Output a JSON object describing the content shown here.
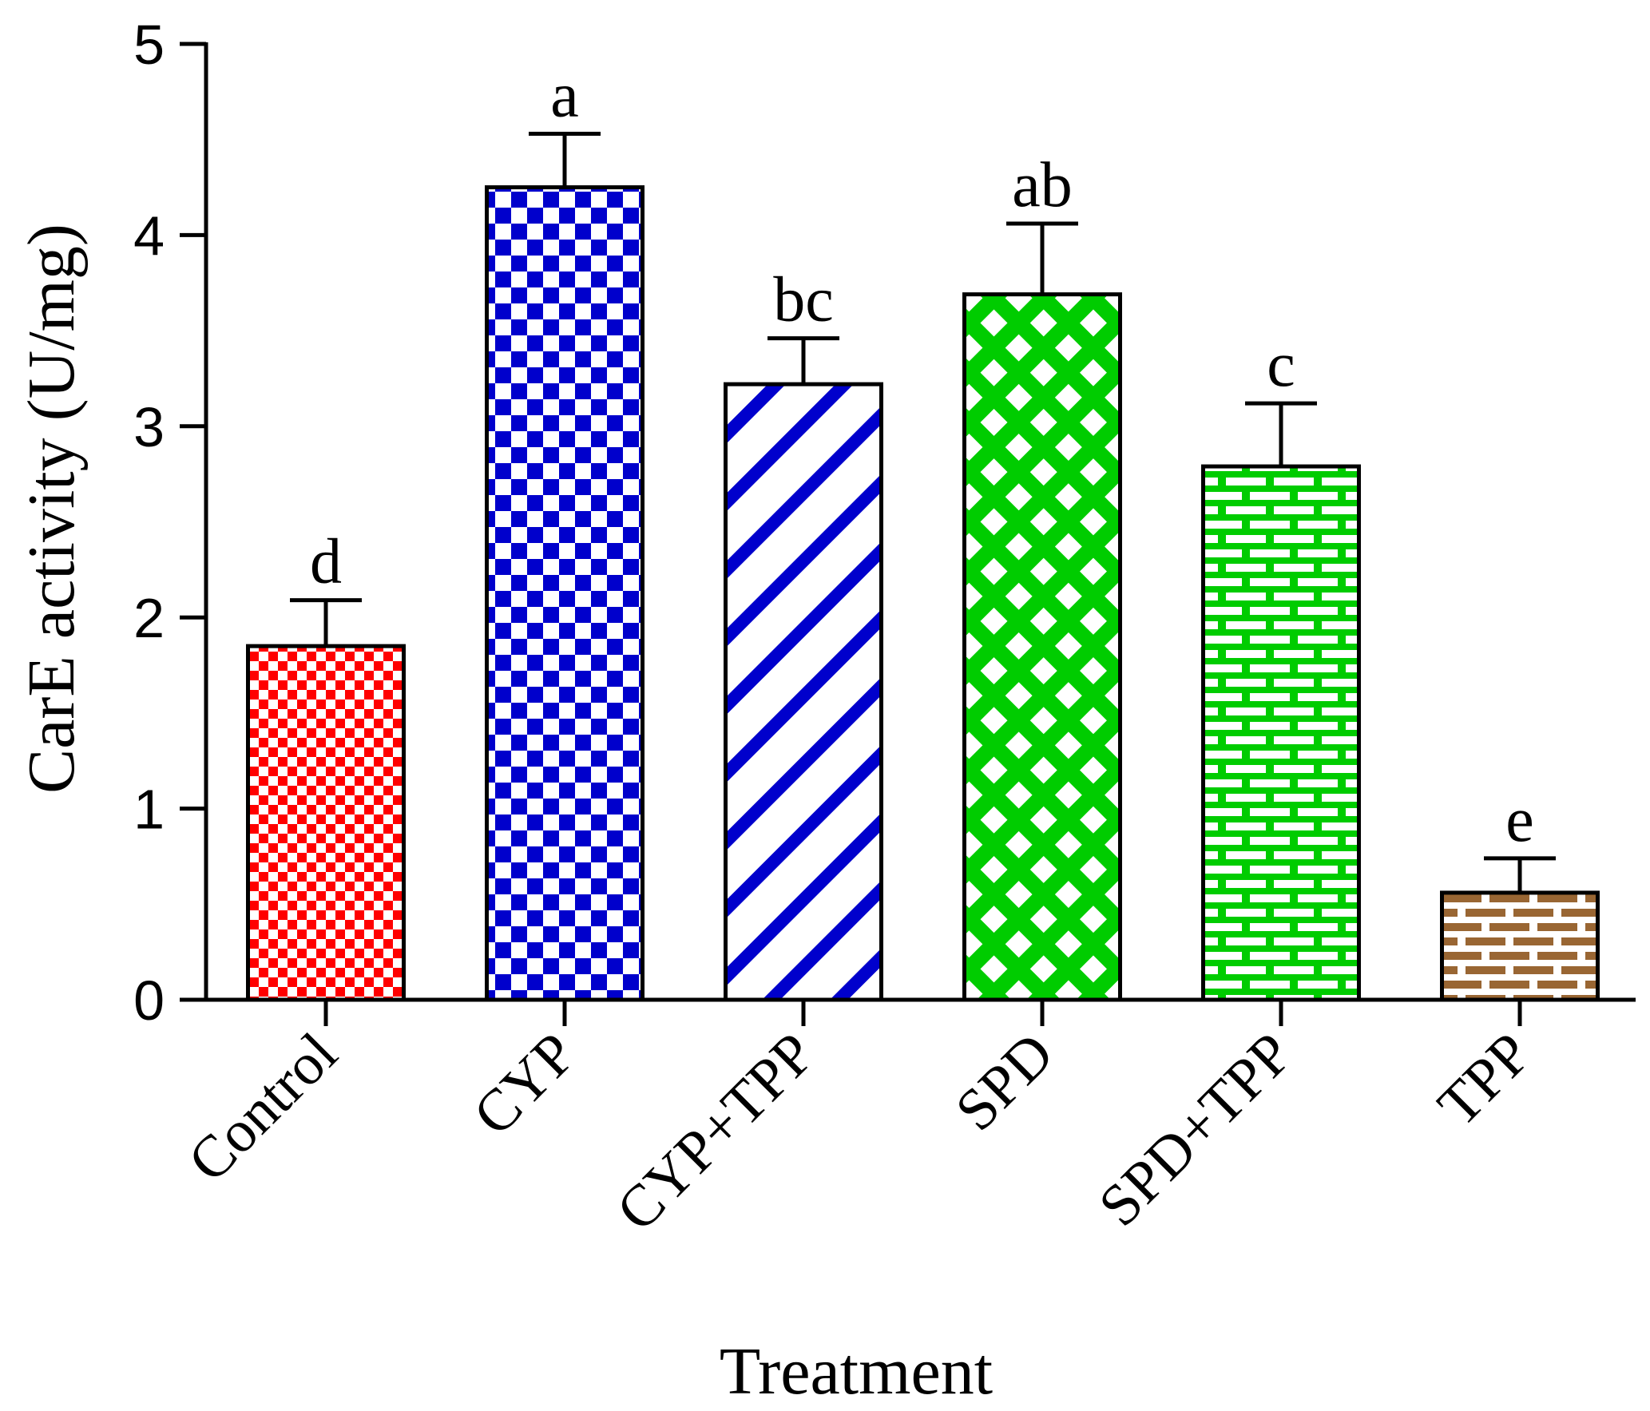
{
  "chart_data": {
    "type": "bar",
    "xlabel": "Treatment",
    "ylabel": "CarE activity (U/mg)",
    "ylim": [
      0,
      5
    ],
    "yticks": [
      "0",
      "1",
      "2",
      "3",
      "4",
      "5"
    ],
    "grid": false,
    "categories": [
      "Control",
      "CYP",
      "CYP+TPP",
      "SPD",
      "SPD+TPP",
      "TPP"
    ],
    "values": [
      1.85,
      4.25,
      3.22,
      3.69,
      2.79,
      0.56
    ],
    "errors": [
      0.24,
      0.28,
      0.24,
      0.37,
      0.33,
      0.18
    ],
    "significance_letters": [
      "d",
      "a",
      "bc",
      "ab",
      "c",
      "e"
    ],
    "bar_styles": [
      {
        "pattern": "checker-small",
        "color": "#ff0000"
      },
      {
        "pattern": "checker-large",
        "color": "#0000cc"
      },
      {
        "pattern": "diagonal-stripes",
        "color": "#0000cc"
      },
      {
        "pattern": "diamond-lattice",
        "color": "#00cc00"
      },
      {
        "pattern": "bricks",
        "color": "#00cc00"
      },
      {
        "pattern": "bricks-filled",
        "color": "#996633"
      }
    ]
  }
}
